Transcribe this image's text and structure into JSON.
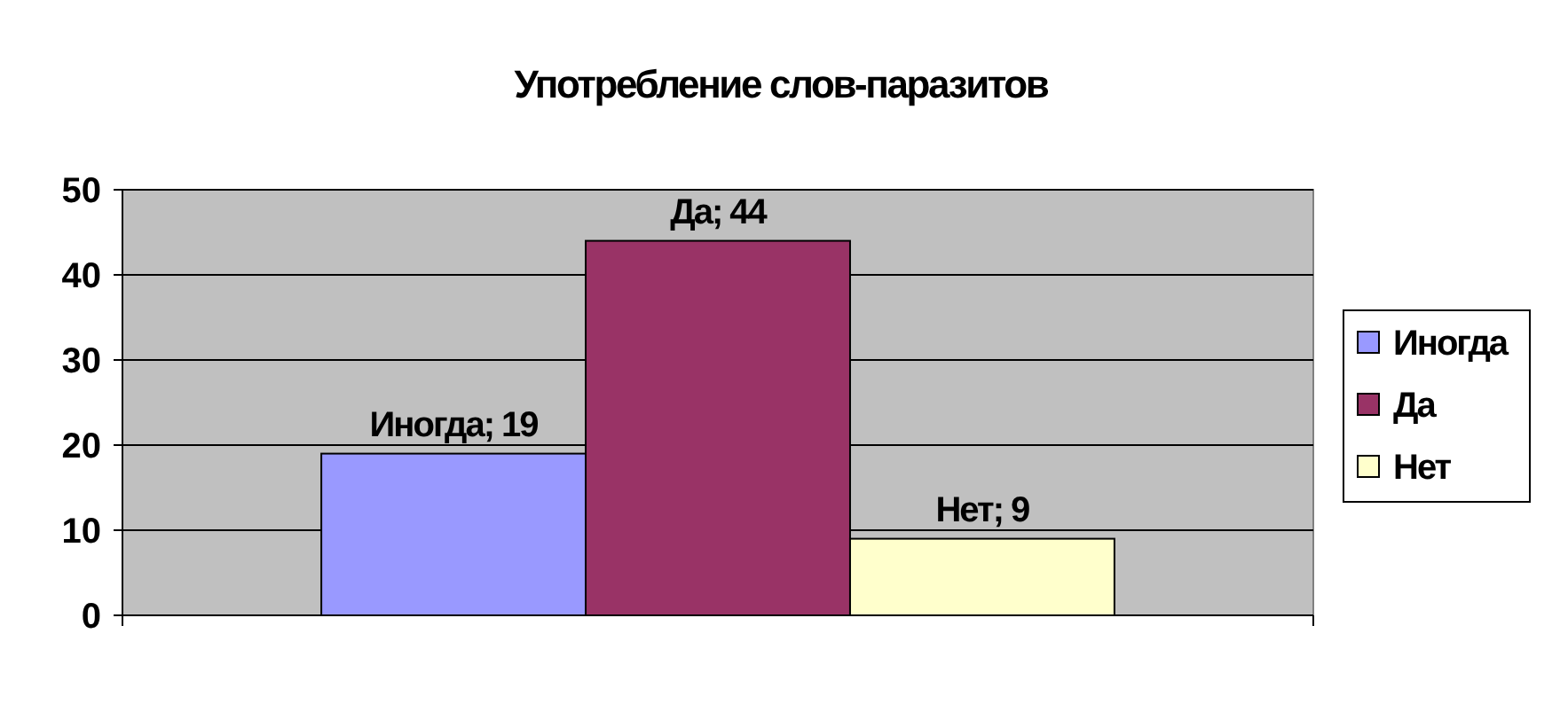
{
  "chart_data": {
    "type": "bar",
    "title": "Употребление слов-паразитов",
    "categories": [
      null
    ],
    "series": [
      {
        "name": "Иногда",
        "color": "#9999ff",
        "values": [
          19
        ],
        "value_labels": [
          "Иногда; 19"
        ]
      },
      {
        "name": "Да",
        "color": "#993366",
        "values": [
          44
        ],
        "value_labels": [
          "Да; 44"
        ]
      },
      {
        "name": "Нет",
        "color": "#ffffcc",
        "values": [
          9
        ],
        "value_labels": [
          "Нет; 9"
        ]
      }
    ],
    "ylim": [
      0,
      50
    ],
    "yticks": [
      0,
      10,
      20,
      30,
      40,
      50
    ],
    "grid": "y",
    "legend": "right"
  }
}
